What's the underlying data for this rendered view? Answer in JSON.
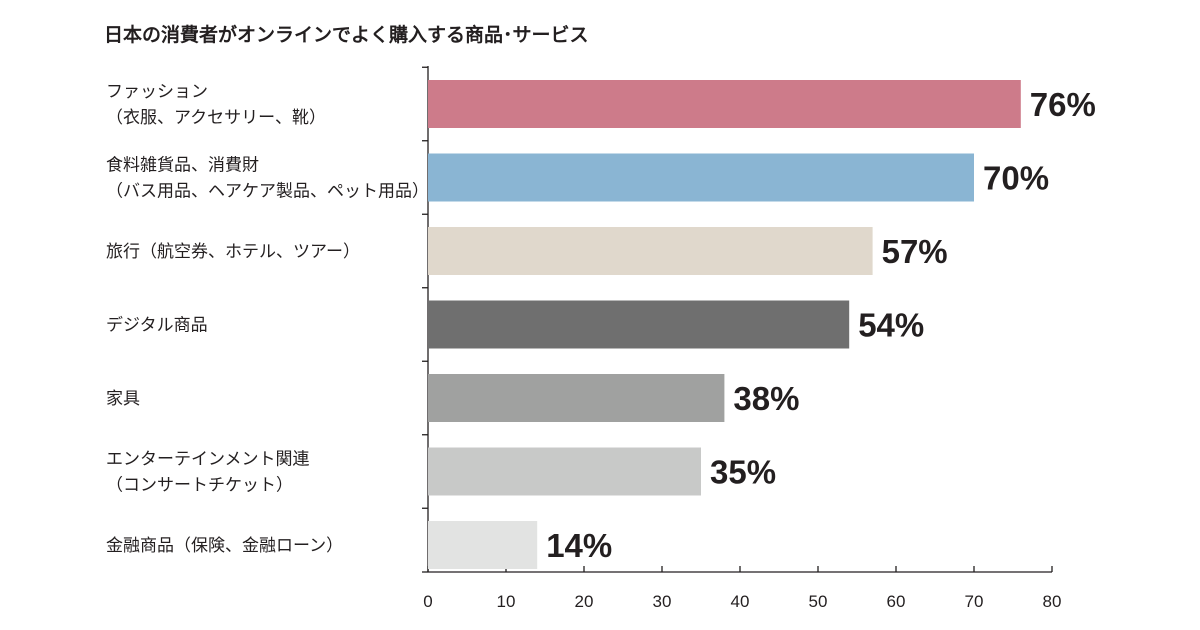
{
  "chart_data": {
    "type": "bar",
    "orientation": "horizontal",
    "title": "日本の消費者がオンラインでよく購入する商品･サービス",
    "categories": [
      {
        "lines": [
          "ファッション",
          "（衣服、アクセサリー、靴）"
        ],
        "color": "#cd7b8a"
      },
      {
        "lines": [
          "食料雑貨品、消費財",
          "（バス用品、ヘアケア製品、ペット用品）"
        ],
        "color": "#8ab5d3"
      },
      {
        "lines": [
          "旅行（航空券、ホテル、ツアー）"
        ],
        "color": "#e0d8cc"
      },
      {
        "lines": [
          "デジタル商品"
        ],
        "color": "#6f6f6f"
      },
      {
        "lines": [
          "家具"
        ],
        "color": "#a0a1a0"
      },
      {
        "lines": [
          "エンターテインメント関連",
          "（コンサートチケット）"
        ],
        "color": "#c8c9c8"
      },
      {
        "lines": [
          "金融商品（保険、金融ローン）"
        ],
        "color": "#e2e3e2"
      }
    ],
    "values": [
      76,
      70,
      57,
      54,
      38,
      35,
      14
    ],
    "value_labels": [
      "76%",
      "70%",
      "57%",
      "54%",
      "38%",
      "35%",
      "14%"
    ],
    "xlim": [
      0,
      80
    ],
    "xticks": [
      "0",
      "10",
      "20",
      "30",
      "40",
      "50",
      "60",
      "70",
      "80"
    ],
    "grid": false,
    "xlabel": "",
    "ylabel": ""
  }
}
